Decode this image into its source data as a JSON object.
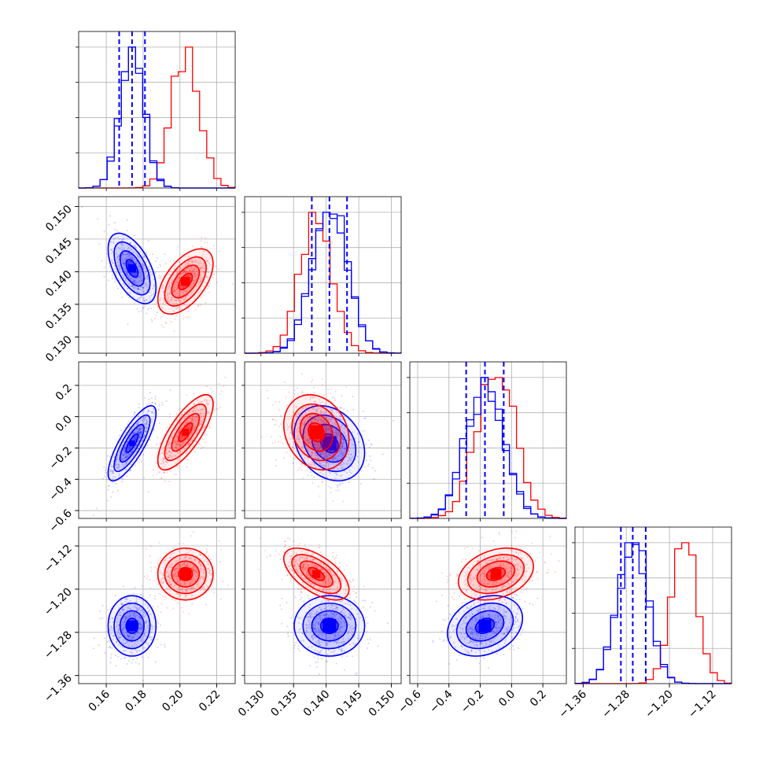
{
  "chart_data": {
    "type": "corner",
    "series": [
      {
        "name": "",
        "color": "#0000ff"
      },
      {
        "name": "",
        "color": "#ff0000"
      }
    ],
    "parameters": [
      {
        "range": [
          0.145,
          0.23
        ],
        "ticks": [
          "0.16",
          "0.18",
          "0.20",
          "0.22"
        ],
        "tick_values": [
          0.16,
          0.18,
          0.2,
          0.22
        ]
      },
      {
        "range": [
          0.1275,
          0.1515
        ],
        "ticks": [
          "0.130",
          "0.135",
          "0.140",
          "0.145",
          "0.150"
        ],
        "tick_values": [
          0.13,
          0.135,
          0.14,
          0.145,
          0.15
        ]
      },
      {
        "range": [
          -0.65,
          0.35
        ],
        "ticks": [
          "−0.6",
          "−0.4",
          "−0.2",
          "0.0",
          "0.2"
        ],
        "tick_values": [
          -0.6,
          -0.4,
          -0.2,
          0.0,
          0.2
        ]
      },
      {
        "range": [
          -1.375,
          -1.085
        ],
        "ticks": [
          "−1.36",
          "−1.28",
          "−1.20",
          "−1.12"
        ],
        "tick_values": [
          -1.36,
          -1.28,
          -1.2,
          -1.12
        ]
      }
    ],
    "blue": {
      "means": [
        0.174,
        0.1405,
        -0.17,
        -1.268
      ],
      "sigmas": [
        0.0065,
        0.0027,
        0.12,
        0.028
      ],
      "quantiles": [
        [
          0.167,
          0.174,
          0.181
        ],
        [
          0.1378,
          0.1405,
          0.1432
        ],
        [
          -0.29,
          -0.17,
          -0.05
        ],
        [
          -1.29,
          -1.268,
          -1.244
        ]
      ]
    },
    "red": {
      "means": [
        0.203,
        0.1385,
        -0.1,
        -1.172
      ],
      "sigmas": [
        0.0075,
        0.0025,
        0.12,
        0.024
      ]
    },
    "correlations": {
      "blue": {
        "0-1": -0.55,
        "0-2": 0.8,
        "0-3": 0.0,
        "1-2": -0.25,
        "1-3": 0.0,
        "2-3": 0.25
      },
      "red": {
        "0-1": 0.55,
        "0-2": 0.75,
        "0-3": 0.0,
        "1-2": -0.2,
        "1-3": -0.6,
        "2-3": 0.3
      }
    },
    "grid": true,
    "legend": "none",
    "title": "",
    "xlabel": "",
    "ylabel": ""
  }
}
